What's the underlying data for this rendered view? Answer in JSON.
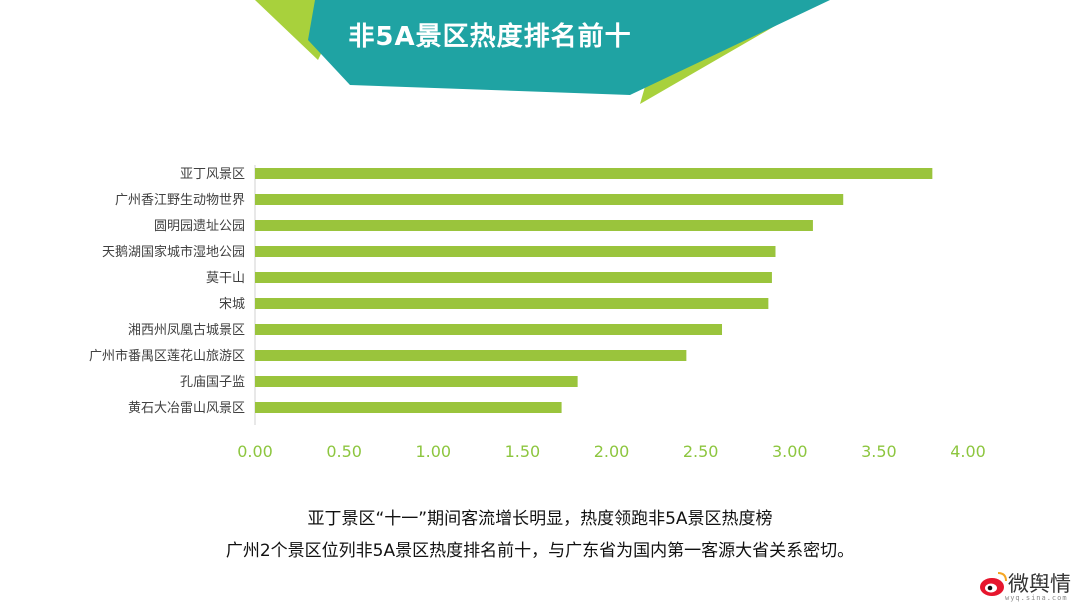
{
  "title": "非5A景区热度排名前十",
  "chart_data": {
    "type": "bar",
    "orientation": "horizontal",
    "categories": [
      "亚丁风景区",
      "广州香江野生动物世界",
      "圆明园遗址公园",
      "天鹅湖国家城市湿地公园",
      "莫干山",
      "宋城",
      "湘西州凤凰古城景区",
      "广州市番禺区莲花山旅游区",
      "孔庙国子监",
      "黄石大冶雷山风景区"
    ],
    "values": [
      3.8,
      3.3,
      3.13,
      2.92,
      2.9,
      2.88,
      2.62,
      2.42,
      1.81,
      1.72
    ],
    "xlim": [
      0,
      4
    ],
    "xticks": [
      "0.00",
      "0.50",
      "1.00",
      "1.50",
      "2.00",
      "2.50",
      "3.00",
      "3.50",
      "4.00"
    ],
    "grid": false,
    "bar_color": "#9ac43c",
    "tick_color": "#8dc63f"
  },
  "caption": {
    "line1": "亚丁景区“十一”期间客流增长明显，热度领跑非5A景区热度榜",
    "line2": "广州2个景区位列非5A景区热度排名前十，与广东省为国内第一客源大省关系密切。"
  },
  "logo": {
    "text": "微舆情",
    "sub": "wyq.sina.com"
  },
  "colors": {
    "teal": "#1fa3a3",
    "lime": "#a8d13c",
    "accent_bar": "#9ac43c"
  }
}
